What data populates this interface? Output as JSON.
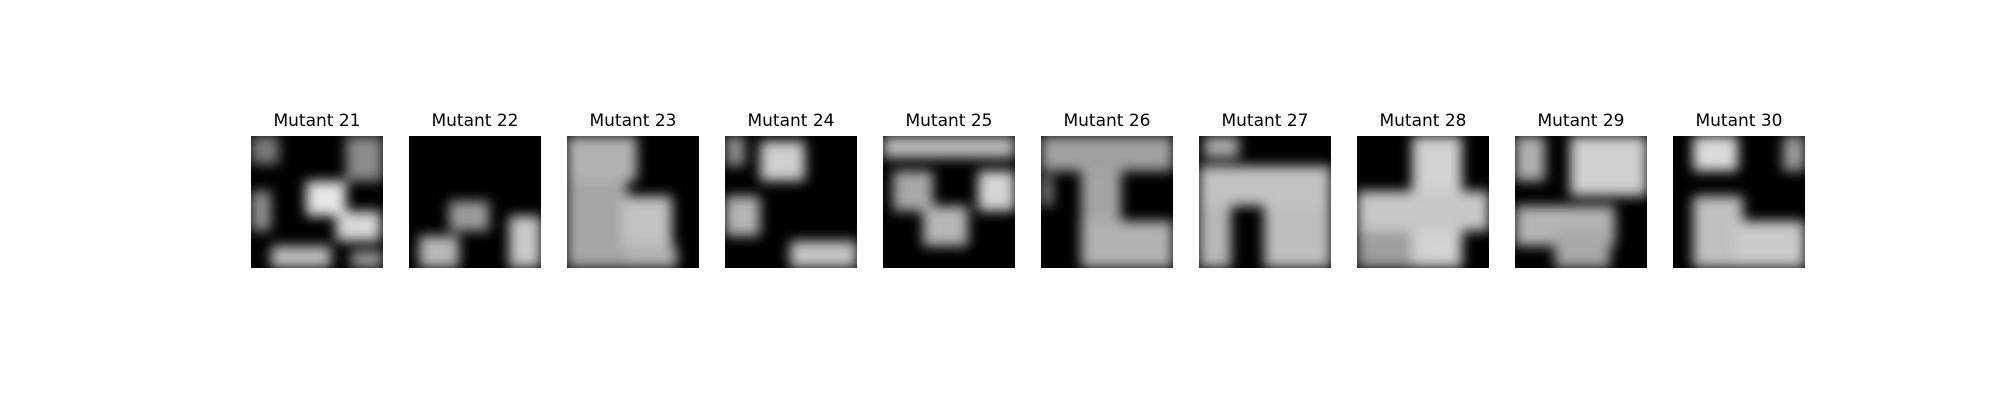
{
  "figure": {
    "panels": [
      {
        "title": "Mutant 21"
      },
      {
        "title": "Mutant 22"
      },
      {
        "title": "Mutant 23"
      },
      {
        "title": "Mutant 24"
      },
      {
        "title": "Mutant 25"
      },
      {
        "title": "Mutant 26"
      },
      {
        "title": "Mutant 27"
      },
      {
        "title": "Mutant 28"
      },
      {
        "title": "Mutant 29"
      },
      {
        "title": "Mutant 30"
      }
    ]
  },
  "colors": {
    "background": "#ffffff",
    "mask": "#000000",
    "bright": "#f2f2f2",
    "mid_gray": "#a8a8a8"
  }
}
